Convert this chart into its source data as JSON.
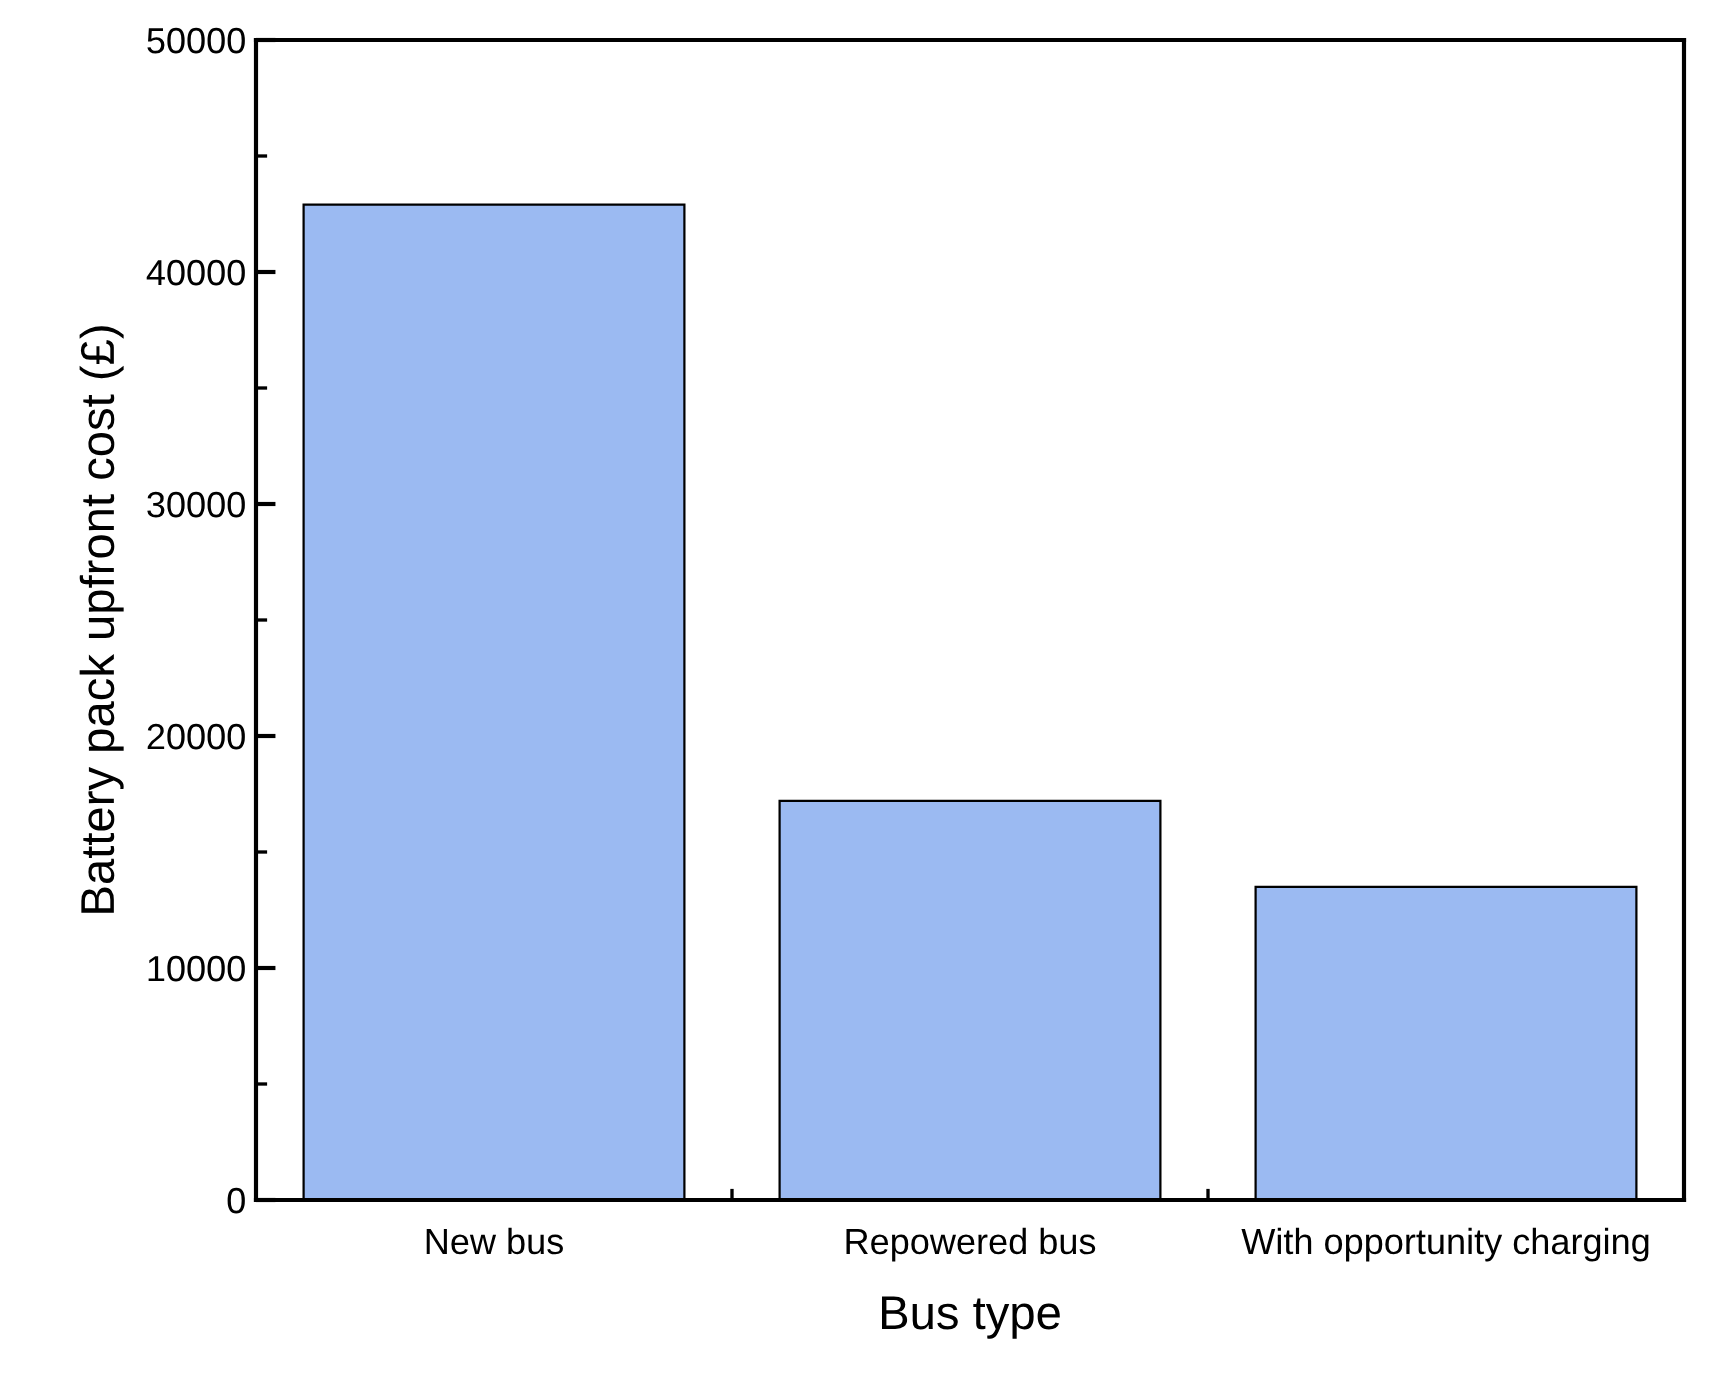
{
  "chart_data": {
    "type": "bar",
    "xlabel": "Bus type",
    "ylabel": "Battery pack upfront cost (£)",
    "categories": [
      "New bus",
      "Repowered bus",
      "With opportunity charging"
    ],
    "values": [
      42900,
      17200,
      13500
    ],
    "color": "#9bbaf2",
    "ylim": [
      0,
      50000
    ],
    "yticks": [
      0,
      10000,
      20000,
      30000,
      40000,
      50000
    ],
    "grid": false
  }
}
